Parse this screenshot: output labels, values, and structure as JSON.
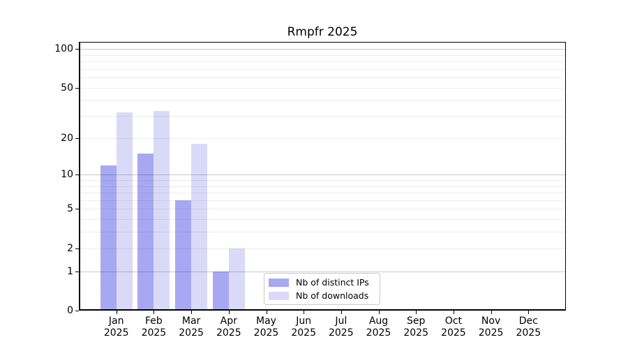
{
  "chart_data": {
    "type": "bar",
    "title": "Rmpfr 2025",
    "categories": [
      "Jan",
      "Feb",
      "Mar",
      "Apr",
      "May",
      "Jun",
      "Jul",
      "Aug",
      "Sep",
      "Oct",
      "Nov",
      "Dec"
    ],
    "x_year_label": "2025",
    "series": [
      {
        "name": "Nb of distinct IPs",
        "color": "#a8a8f2",
        "values": [
          12,
          15,
          6,
          1,
          0,
          0,
          0,
          0,
          0,
          0,
          0,
          0
        ]
      },
      {
        "name": "Nb of downloads",
        "color": "#dadaf8",
        "values": [
          32,
          33,
          18,
          2,
          0,
          0,
          0,
          0,
          0,
          0,
          0,
          0
        ]
      }
    ],
    "y_scale": "log(1+x)",
    "ylim": [
      0,
      113
    ],
    "y_tick_labels": [
      100,
      50,
      20,
      10,
      5,
      2,
      1,
      0
    ],
    "y_major_gridlines": [
      1,
      10,
      100
    ],
    "y_minor_gridlines": [
      2,
      3,
      4,
      5,
      6,
      7,
      8,
      9,
      20,
      30,
      40,
      50,
      60,
      70,
      80,
      90
    ],
    "grid": "horizontal",
    "legend_position": "lower center",
    "colors": {
      "major_grid": "#c9c9c9",
      "minor_grid": "#ededed",
      "axis": "#000000",
      "background": "#ffffff"
    }
  }
}
